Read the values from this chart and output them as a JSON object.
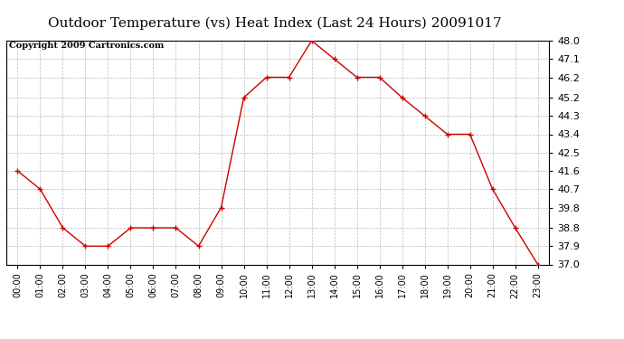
{
  "title": "Outdoor Temperature (vs) Heat Index (Last 24 Hours) 20091017",
  "copyright": "Copyright 2009 Cartronics.com",
  "x_labels": [
    "00:00",
    "01:00",
    "02:00",
    "03:00",
    "04:00",
    "05:00",
    "06:00",
    "07:00",
    "08:00",
    "09:00",
    "10:00",
    "11:00",
    "12:00",
    "13:00",
    "14:00",
    "15:00",
    "16:00",
    "17:00",
    "18:00",
    "19:00",
    "20:00",
    "21:00",
    "22:00",
    "23:00"
  ],
  "y_values": [
    41.6,
    40.7,
    38.8,
    37.9,
    37.9,
    38.8,
    38.8,
    38.8,
    37.9,
    39.8,
    45.2,
    46.2,
    46.2,
    48.0,
    47.1,
    46.2,
    46.2,
    45.2,
    44.3,
    43.4,
    43.4,
    40.7,
    38.8,
    37.0
  ],
  "y_min": 37.0,
  "y_max": 48.0,
  "y_ticks": [
    37.0,
    37.9,
    38.8,
    39.8,
    40.7,
    41.6,
    42.5,
    43.4,
    44.3,
    45.2,
    46.2,
    47.1,
    48.0
  ],
  "line_color": "#cc0000",
  "marker": "+",
  "marker_color": "#cc0000",
  "bg_color": "#ffffff",
  "grid_color": "#bbbbbb",
  "title_fontsize": 11,
  "copyright_fontsize": 7,
  "tick_fontsize": 8,
  "xlabel_fontsize": 7
}
